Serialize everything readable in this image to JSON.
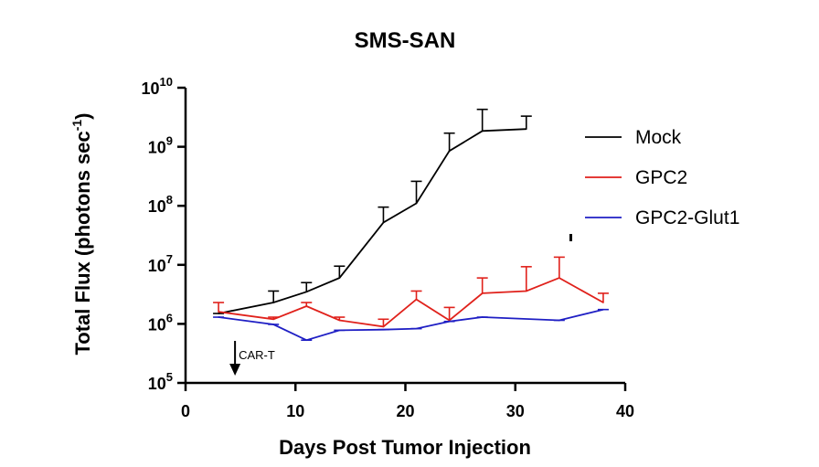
{
  "chart_data": {
    "type": "line",
    "title": "SMS-SAN",
    "xlabel": "Days Post Tumor Injection",
    "ylabel_main": "Total Flux (photons sec",
    "ylabel_sup": "-1",
    "ylabel_close": ")",
    "xlim": [
      0,
      40
    ],
    "ylim_log10": [
      5,
      10
    ],
    "x_ticks": [
      0,
      10,
      20,
      30,
      40
    ],
    "x_tick_labels": [
      "0",
      "10",
      "20",
      "30",
      "40"
    ],
    "y_ticks_exp": [
      5,
      6,
      7,
      8,
      9,
      10
    ],
    "y_tick_labels": [
      {
        "base": "10",
        "exp": "5"
      },
      {
        "base": "10",
        "exp": "6"
      },
      {
        "base": "10",
        "exp": "7"
      },
      {
        "base": "10",
        "exp": "8"
      },
      {
        "base": "10",
        "exp": "9"
      },
      {
        "base": "10",
        "exp": "10"
      }
    ],
    "legend_position": "right",
    "series": [
      {
        "name": "Mock",
        "color": "#000000",
        "points": [
          {
            "x": 3,
            "y": 1500000.0,
            "hi": 1500000.0
          },
          {
            "x": 8,
            "y": 2300000.0,
            "hi": 3600000.0
          },
          {
            "x": 11,
            "y": 3500000.0,
            "hi": 5000000.0
          },
          {
            "x": 14,
            "y": 6000000.0,
            "hi": 9500000.0
          },
          {
            "x": 18,
            "y": 52000000.0,
            "hi": 95000000.0
          },
          {
            "x": 21,
            "y": 110000000.0,
            "hi": 260000000.0
          },
          {
            "x": 24,
            "y": 850000000.0,
            "hi": 1700000000.0
          },
          {
            "x": 27,
            "y": 1850000000.0,
            "hi": 4300000000.0
          },
          {
            "x": 31,
            "y": 2000000000.0,
            "hi": 3300000000.0
          }
        ]
      },
      {
        "name": "GPC2",
        "color": "#e0211b",
        "points": [
          {
            "x": 3,
            "y": 1600000.0,
            "hi": 2300000.0
          },
          {
            "x": 8,
            "y": 1200000.0,
            "hi": 1300000.0
          },
          {
            "x": 11,
            "y": 2000000.0,
            "hi": 2300000.0
          },
          {
            "x": 14,
            "y": 1150000.0,
            "hi": 1300000.0
          },
          {
            "x": 18,
            "y": 900000.0,
            "hi": 1200000.0
          },
          {
            "x": 21,
            "y": 2600000.0,
            "hi": 3600000.0
          },
          {
            "x": 24,
            "y": 1150000.0,
            "hi": 1900000.0
          },
          {
            "x": 27,
            "y": 3300000.0,
            "hi": 6000000.0
          },
          {
            "x": 31,
            "y": 3600000.0,
            "hi": 9300000.0
          },
          {
            "x": 34,
            "y": 6000000.0,
            "hi": 13500000.0
          },
          {
            "x": 38,
            "y": 2300000.0,
            "hi": 3300000.0
          }
        ]
      },
      {
        "name": "GPC2-Glut1",
        "color": "#1f1fc4",
        "points": [
          {
            "x": 3,
            "y": 1300000.0,
            "hi": 1300000.0
          },
          {
            "x": 8,
            "y": 980000.0,
            "hi": 980000.0
          },
          {
            "x": 11,
            "y": 530000.0,
            "hi": 530000.0
          },
          {
            "x": 14,
            "y": 780000.0,
            "hi": 780000.0
          },
          {
            "x": 18,
            "y": 800000.0,
            "hi": 800000.0
          },
          {
            "x": 21,
            "y": 830000.0,
            "hi": 830000.0
          },
          {
            "x": 24,
            "y": 1100000.0,
            "hi": 1100000.0
          },
          {
            "x": 27,
            "y": 1300000.0,
            "hi": 1300000.0
          },
          {
            "x": 34,
            "y": 1150000.0,
            "hi": 1150000.0
          },
          {
            "x": 38,
            "y": 1750000.0,
            "hi": 1750000.0
          }
        ]
      }
    ],
    "annotation": {
      "text": "CAR-T",
      "x": 4.5
    }
  }
}
